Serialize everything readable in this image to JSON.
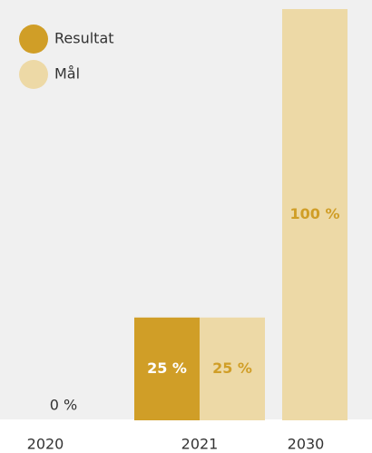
{
  "chart_data": {
    "type": "bar",
    "categories": [
      "2020",
      "2021",
      "2030"
    ],
    "series": [
      {
        "name": "Resultat",
        "color": "#d09e27",
        "values": [
          0,
          25,
          null
        ],
        "value_labels": [
          "0 %",
          "25 %",
          null
        ]
      },
      {
        "name": "Mål",
        "color": "#edd9a6",
        "values": [
          null,
          25,
          100
        ],
        "value_labels": [
          null,
          "25 %",
          "100 %"
        ]
      }
    ],
    "ylim": [
      0,
      100
    ],
    "legend": "top-left"
  }
}
